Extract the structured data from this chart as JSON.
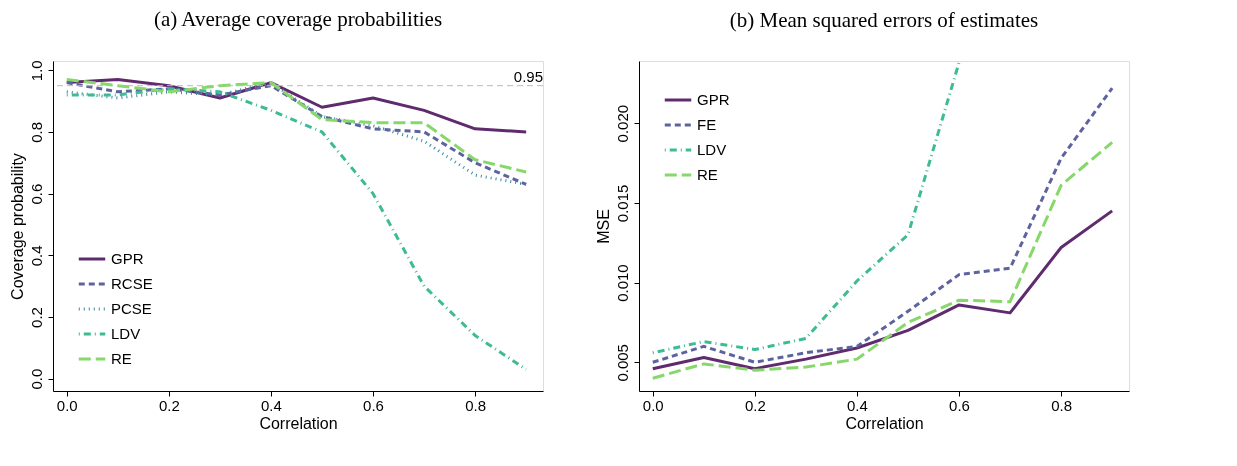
{
  "chart_data": [
    {
      "type": "line",
      "title": "(a) Average coverage probabilities",
      "xlabel": "Correlation",
      "ylabel": "Coverage probability",
      "x": [
        0.0,
        0.1,
        0.2,
        0.3,
        0.4,
        0.5,
        0.6,
        0.7,
        0.8,
        0.9
      ],
      "series": [
        {
          "name": "GPR",
          "color": "#5f2a6e",
          "line_style": "solid",
          "values": [
            0.96,
            0.97,
            0.95,
            0.91,
            0.96,
            0.88,
            0.91,
            0.87,
            0.81,
            0.8
          ]
        },
        {
          "name": "RCSE",
          "color": "#5e63a0",
          "line_style": "dashed",
          "values": [
            0.96,
            0.93,
            0.94,
            0.92,
            0.95,
            0.85,
            0.81,
            0.8,
            0.7,
            0.63
          ]
        },
        {
          "name": "PCSE",
          "color": "#3a8a9a",
          "line_style": "dotted",
          "values": [
            0.93,
            0.91,
            0.93,
            0.92,
            0.96,
            0.85,
            0.82,
            0.77,
            0.66,
            0.63
          ]
        },
        {
          "name": "LDV",
          "color": "#3dbb96",
          "line_style": "dashdot",
          "values": [
            0.92,
            0.92,
            0.94,
            0.93,
            0.87,
            0.8,
            0.6,
            0.3,
            0.14,
            0.03
          ]
        },
        {
          "name": "RE",
          "color": "#86d86a",
          "line_style": "longdash",
          "values": [
            0.97,
            0.95,
            0.93,
            0.95,
            0.96,
            0.84,
            0.83,
            0.83,
            0.71,
            0.67
          ]
        }
      ],
      "xlim": [
        -0.027,
        0.933
      ],
      "ylim": [
        -0.04,
        1.03
      ],
      "xticks": [
        {
          "value": 0,
          "label": "0.0"
        },
        0.2,
        0.4,
        0.6,
        0.8
      ],
      "yticks": [
        {
          "value": 0,
          "label": "0.0"
        },
        0.2,
        0.4,
        0.6,
        0.8,
        {
          "value": 1,
          "label": "1.0"
        }
      ],
      "ref_lines": [
        {
          "axis": "y",
          "value": 0.95,
          "label": "0.95",
          "color": "#bbbbbb",
          "line_style": "dashed"
        }
      ],
      "legend": "bottom left",
      "grid": false
    },
    {
      "type": "line",
      "title": "(b) Mean squared errors of estimates",
      "xlabel": "Correlation",
      "ylabel": "MSE",
      "x": [
        0.0,
        0.1,
        0.2,
        0.3,
        0.4,
        0.5,
        0.6,
        0.7,
        0.8,
        0.9
      ],
      "series": [
        {
          "name": "GPR",
          "color": "#5f2a6e",
          "line_style": "solid",
          "values": [
            0.0046,
            0.0053,
            0.0046,
            0.0052,
            0.0059,
            0.007,
            0.0086,
            0.0081,
            0.0122,
            0.0145
          ]
        },
        {
          "name": "FE",
          "color": "#5e63a0",
          "line_style": "dashed",
          "values": [
            0.005,
            0.006,
            0.005,
            0.0056,
            0.006,
            0.0082,
            0.0105,
            0.0109,
            0.0178,
            0.0222
          ]
        },
        {
          "name": "LDV",
          "color": "#3dbb96",
          "line_style": "dashdot",
          "values": [
            0.0056,
            0.0063,
            0.0058,
            0.0065,
            0.0101,
            0.013,
            0.0238,
            null,
            null,
            null
          ]
        },
        {
          "name": "RE",
          "color": "#86d86a",
          "line_style": "longdash",
          "values": [
            0.004,
            0.0049,
            0.0045,
            0.0047,
            0.0052,
            0.0075,
            0.0089,
            0.0088,
            0.0161,
            0.0188
          ]
        }
      ],
      "xlim": [
        -0.027,
        0.933
      ],
      "ylim": [
        0.0032,
        0.0239
      ],
      "xticks": [
        {
          "value": 0,
          "label": "0.0"
        },
        0.2,
        0.4,
        0.6,
        0.8
      ],
      "yticks": [
        0.005,
        {
          "value": 0.01,
          "label": "0.010"
        },
        0.015,
        {
          "value": 0.02,
          "label": "0.020"
        }
      ],
      "legend": "top left",
      "grid": false
    }
  ]
}
